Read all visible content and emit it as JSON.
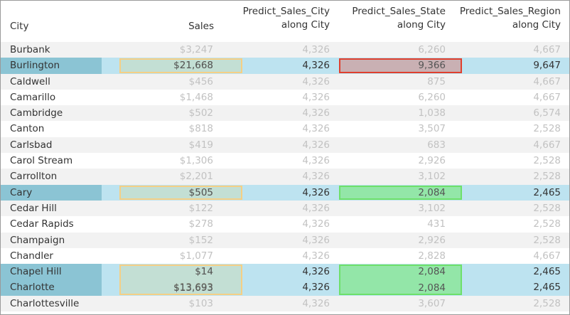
{
  "headers": {
    "city": "City",
    "sales": "Sales",
    "predict_city": [
      "Predict_Sales_City",
      "along City"
    ],
    "predict_state": [
      "Predict_Sales_State",
      "along City"
    ],
    "predict_region": [
      "Predict_Sales_Region",
      "along City"
    ]
  },
  "rows": [
    {
      "city": "Burbank",
      "sales": "$3,247",
      "p_city": "4,326",
      "p_state": "6,260",
      "p_region": "4,667",
      "highlight": false
    },
    {
      "city": "Burlington",
      "sales": "$21,668",
      "p_city": "4,326",
      "p_state": "9,366",
      "p_region": "9,647",
      "highlight": true
    },
    {
      "city": "Caldwell",
      "sales": "$456",
      "p_city": "4,326",
      "p_state": "875",
      "p_region": "4,667",
      "highlight": false
    },
    {
      "city": "Camarillo",
      "sales": "$1,468",
      "p_city": "4,326",
      "p_state": "6,260",
      "p_region": "4,667",
      "highlight": false
    },
    {
      "city": "Cambridge",
      "sales": "$502",
      "p_city": "4,326",
      "p_state": "1,038",
      "p_region": "6,574",
      "highlight": false
    },
    {
      "city": "Canton",
      "sales": "$818",
      "p_city": "4,326",
      "p_state": "3,507",
      "p_region": "2,528",
      "highlight": false
    },
    {
      "city": "Carlsbad",
      "sales": "$419",
      "p_city": "4,326",
      "p_state": "683",
      "p_region": "4,667",
      "highlight": false
    },
    {
      "city": "Carol Stream",
      "sales": "$1,306",
      "p_city": "4,326",
      "p_state": "2,926",
      "p_region": "2,528",
      "highlight": false
    },
    {
      "city": "Carrollton",
      "sales": "$2,201",
      "p_city": "4,326",
      "p_state": "3,102",
      "p_region": "2,528",
      "highlight": false
    },
    {
      "city": "Cary",
      "sales": "$505",
      "p_city": "4,326",
      "p_state": "2,084",
      "p_region": "2,465",
      "highlight": true
    },
    {
      "city": "Cedar Hill",
      "sales": "$122",
      "p_city": "4,326",
      "p_state": "3,102",
      "p_region": "2,528",
      "highlight": false
    },
    {
      "city": "Cedar Rapids",
      "sales": "$278",
      "p_city": "4,326",
      "p_state": "431",
      "p_region": "2,528",
      "highlight": false
    },
    {
      "city": "Champaign",
      "sales": "$152",
      "p_city": "4,326",
      "p_state": "2,926",
      "p_region": "2,528",
      "highlight": false
    },
    {
      "city": "Chandler",
      "sales": "$1,077",
      "p_city": "4,326",
      "p_state": "2,828",
      "p_region": "4,667",
      "highlight": false
    },
    {
      "city": "Chapel Hill",
      "sales": "$14",
      "p_city": "4,326",
      "p_state": "2,084",
      "p_region": "2,465",
      "highlight": true
    },
    {
      "city": "Charlotte",
      "sales": "$13,693",
      "p_city": "4,326",
      "p_state": "2,084",
      "p_region": "2,465",
      "highlight": true
    },
    {
      "city": "Charlottesville",
      "sales": "$103",
      "p_city": "4,326",
      "p_state": "3,607",
      "p_region": "2,528",
      "highlight": false
    }
  ],
  "colors": {
    "highlight_row": "#bde3f0",
    "highlight_city": "#8bc4d4",
    "stripe": "#f2f2f2",
    "box_orange": "#f5cf85",
    "box_red": "#e0402e",
    "box_green": "#6ee06a"
  }
}
